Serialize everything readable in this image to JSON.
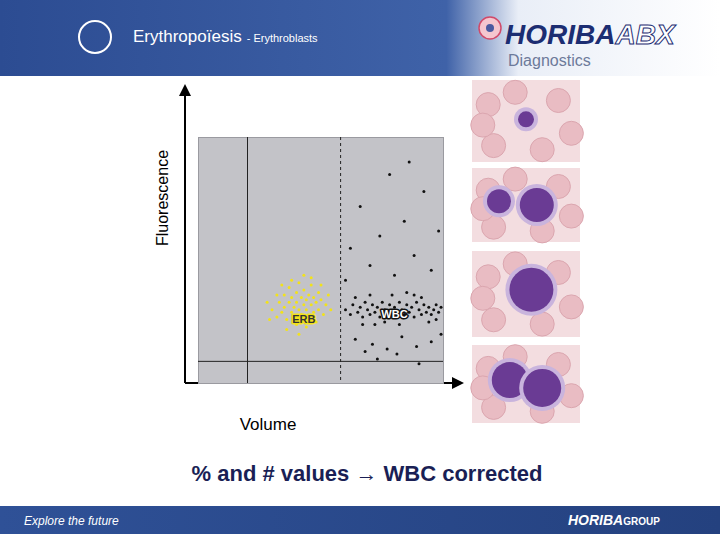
{
  "chart_data": {
    "type": "scatter",
    "title": "Erythropoïesis",
    "subtitle": "- Erythroblasts",
    "x_label": "Volume",
    "y_label": "Fluorescence",
    "caption": "% and # values → WBC corrected",
    "xlim": [
      0,
      100
    ],
    "ylim": [
      0,
      100
    ],
    "tick_labels": false,
    "grid": false,
    "series": [
      {
        "name": "ERB",
        "color": "#f2e21a",
        "marker": "dot",
        "label_x": 43,
        "label_y": 26,
        "x": [
          30,
          32,
          33,
          34,
          35,
          35,
          36,
          37,
          37,
          38,
          38,
          39,
          39,
          40,
          40,
          41,
          41,
          42,
          42,
          43,
          43,
          44,
          44,
          45,
          45,
          46,
          46,
          47,
          47,
          48,
          49,
          49,
          50,
          51,
          52,
          53,
          36,
          40,
          44,
          48,
          38,
          43,
          46,
          32,
          29,
          34,
          41,
          50,
          28,
          54
        ],
        "y": [
          30,
          27,
          33,
          29,
          36,
          31,
          26,
          33,
          39,
          29,
          35,
          31,
          27,
          37,
          33,
          30,
          41,
          35,
          28,
          32,
          38,
          30,
          34,
          27,
          36,
          32,
          40,
          29,
          35,
          33,
          30,
          37,
          34,
          28,
          32,
          36,
          22,
          24,
          23,
          25,
          42,
          44,
          43,
          36,
          26,
          40,
          20,
          40,
          33,
          30
        ]
      },
      {
        "name": "WBC",
        "color": "#111111",
        "marker": "dot",
        "label_x": 80,
        "label_y": 28,
        "x": [
          60,
          62,
          63,
          65,
          66,
          67,
          68,
          69,
          70,
          71,
          72,
          73,
          74,
          75,
          76,
          77,
          78,
          79,
          80,
          81,
          82,
          83,
          84,
          85,
          86,
          87,
          88,
          89,
          90,
          91,
          92,
          93,
          94,
          95,
          96,
          97,
          98,
          99,
          64,
          70,
          76,
          82,
          88,
          94,
          72,
          85,
          91,
          79,
          67,
          97,
          62,
          66,
          70,
          74,
          78,
          80,
          84,
          88,
          92,
          95,
          98,
          64,
          71,
          77,
          83,
          89,
          95,
          99,
          60,
          86,
          73,
          81,
          90,
          68
        ],
        "y": [
          30,
          28,
          32,
          29,
          31,
          27,
          33,
          30,
          28,
          32,
          29,
          31,
          27,
          33,
          30,
          28,
          32,
          29,
          31,
          27,
          33,
          30,
          28,
          32,
          29,
          31,
          27,
          33,
          30,
          28,
          32,
          29,
          31,
          28,
          30,
          32,
          29,
          31,
          35,
          36,
          25,
          24,
          36,
          25,
          24,
          37,
          35,
          36,
          24,
          26,
          55,
          72,
          48,
          60,
          85,
          44,
          66,
          52,
          78,
          46,
          62,
          18,
          16,
          14,
          19,
          15,
          17,
          20,
          42,
          90,
          10,
          12,
          8,
          13
        ]
      }
    ],
    "gate_lines": [
      {
        "axis": "x",
        "value": 20,
        "line_style": "solid"
      },
      {
        "axis": "x",
        "value": 58,
        "line_style": "dashed"
      },
      {
        "axis": "y",
        "value": 9,
        "line_style": "solid"
      }
    ]
  },
  "slide": {
    "logo": [
      "HORIBA",
      "ABX",
      "Diagnostics"
    ],
    "footer": "Explore the future",
    "footer_logo": [
      "HORIBA",
      "GROUP"
    ]
  }
}
